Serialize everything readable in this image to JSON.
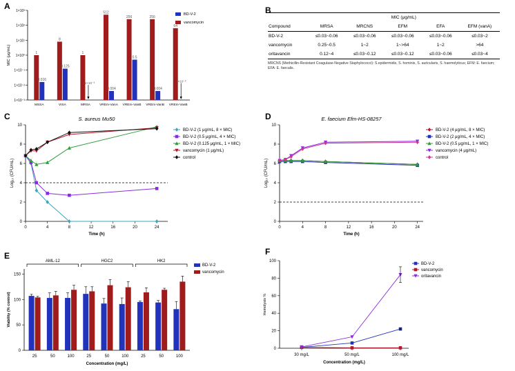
{
  "panels": {
    "a": "A",
    "b": "B",
    "c": "C",
    "d": "D",
    "e": "E",
    "f": "F"
  },
  "chart_data": [
    {
      "id": "A",
      "type": "bar",
      "scale": "log",
      "ylabel": "MIC (μg/mL)",
      "ylim": [
        0.001,
        1000
      ],
      "ticks": [
        "1×10⁻³",
        "1×10⁻²",
        "1×10⁻¹",
        "1×10⁰",
        "1×10¹",
        "1×10²",
        "1×10³"
      ],
      "categories": [
        "MSSA",
        "VISA",
        "MRSA",
        "VREm-VanA",
        "VREm-VanB",
        "VREm-VanB",
        "VREm-VanB"
      ],
      "colors": {
        "BD-V-2": "#2233bb",
        "vancomycin": "#a01c1c"
      },
      "series": [
        {
          "name": "BD-V-2",
          "values": [
            0.016,
            0.125,
            0.0015,
            0.004,
            0.5,
            0.004,
            0.002
          ],
          "labels": [
            "0.016",
            "0.125",
            "1.5×10⁻³",
            "0.004",
            "0.5",
            "0.004",
            "2×10⁻³"
          ],
          "arrow": [
            false,
            false,
            true,
            false,
            false,
            false,
            true
          ]
        },
        {
          "name": "vancomycin",
          "values": [
            1,
            8,
            1,
            512,
            256,
            256,
            64
          ],
          "labels": [
            "1",
            "8",
            "1",
            "512",
            "256",
            "256",
            "64"
          ],
          "arrow": [
            false,
            false,
            false,
            false,
            false,
            false,
            false
          ]
        }
      ]
    },
    {
      "id": "C",
      "type": "line",
      "title": "S. aureus Mu50",
      "xlabel": "Time (h)",
      "ylabel": "Log₁₀ (CFU/mL)",
      "xlim": [
        0,
        26
      ],
      "ylim": [
        0,
        10
      ],
      "xticks": [
        0,
        4,
        8,
        12,
        16,
        20,
        24
      ],
      "yticks": [
        0,
        2,
        4,
        6,
        8,
        10
      ],
      "hline": 4,
      "series": [
        {
          "name": "BD-V-2 (1 μg/mL, 8 × MIC)",
          "color": "#3aa6b8",
          "marker": "diamond",
          "x": [
            0,
            1,
            2,
            4,
            8,
            24
          ],
          "y": [
            6.8,
            6.0,
            3.2,
            2.0,
            0,
            0
          ]
        },
        {
          "name": "BD-V-2 (0.5 μg/mL, 4 × MIC)",
          "color": "#8a2be2",
          "marker": "square",
          "x": [
            0,
            1,
            2,
            4,
            8,
            24
          ],
          "y": [
            6.8,
            6.1,
            4.0,
            2.9,
            2.7,
            3.4
          ]
        },
        {
          "name": "BD-V-2 (0.125 μg/mL, 1 × MIC)",
          "color": "#2e9e3a",
          "marker": "triangle",
          "x": [
            0,
            1,
            2,
            4,
            8,
            24
          ],
          "y": [
            6.8,
            6.3,
            5.9,
            6.1,
            7.6,
            9.8
          ]
        },
        {
          "name": "vancomycin (1 μg/mL)",
          "color": "#b2182b",
          "marker": "tridown",
          "x": [
            0,
            1,
            2,
            4,
            8,
            24
          ],
          "y": [
            6.8,
            7.3,
            7.3,
            8.2,
            9.0,
            9.7
          ]
        },
        {
          "name": "control",
          "color": "#111111",
          "marker": "diamond",
          "x": [
            0,
            1,
            2,
            4,
            8,
            24
          ],
          "y": [
            6.8,
            7.4,
            7.5,
            8.2,
            9.2,
            9.6
          ]
        }
      ]
    },
    {
      "id": "D",
      "type": "line",
      "title": "E. faecium Efm-HS-08257",
      "xlabel": "Time (h)",
      "ylabel": "Log₁₀ (CFU/mL)",
      "xlim": [
        0,
        25
      ],
      "ylim": [
        0,
        10
      ],
      "xticks": [
        0,
        4,
        8,
        12,
        16,
        20,
        24
      ],
      "yticks": [
        0,
        2,
        4,
        6,
        8,
        10
      ],
      "hline": 2,
      "series": [
        {
          "name": "BD-V-2 (4 μg/mL, 8 × MIC)",
          "color": "#b2182b",
          "marker": "diamond",
          "x": [
            0,
            1,
            2,
            4,
            8,
            24
          ],
          "y": [
            6.3,
            6.3,
            6.3,
            6.3,
            6.2,
            5.9
          ]
        },
        {
          "name": "BD-V-2 (2 μg/mL, 4 × MIC)",
          "color": "#2233bb",
          "marker": "square",
          "x": [
            0,
            1,
            2,
            4,
            8,
            24
          ],
          "y": [
            6.2,
            6.2,
            6.2,
            6.2,
            6.1,
            5.8
          ]
        },
        {
          "name": "BD-V-2 (0.5 μg/mL, 1 × MIC)",
          "color": "#2e9e3a",
          "marker": "triangle",
          "x": [
            0,
            1,
            2,
            4,
            8,
            24
          ],
          "y": [
            6.3,
            6.3,
            6.3,
            6.3,
            6.2,
            5.9
          ]
        },
        {
          "name": "vancomycin (4 μg/mL)",
          "color": "#8a2be2",
          "marker": "tridown",
          "x": [
            0,
            1,
            2,
            4,
            8,
            24
          ],
          "y": [
            6.3,
            6.4,
            6.8,
            7.6,
            8.2,
            8.3
          ]
        },
        {
          "name": "control",
          "color": "#cc3399",
          "marker": "diamond",
          "x": [
            0,
            1,
            2,
            4,
            8,
            24
          ],
          "y": [
            6.3,
            6.4,
            6.7,
            7.5,
            8.1,
            8.2
          ]
        }
      ]
    },
    {
      "id": "E",
      "type": "bar",
      "xlabel": "Concentration (mg/L)",
      "ylabel": "Viability (% control)",
      "ylim": [
        0,
        160
      ],
      "yticks": [
        0,
        50,
        100,
        150
      ],
      "groups": [
        "AML-12",
        "HGC2",
        "HK2"
      ],
      "categories": [
        "25",
        "50",
        "100",
        "25",
        "50",
        "100",
        "25",
        "50",
        "100"
      ],
      "series": [
        {
          "name": "BD-V-2",
          "color": "#2233bb",
          "values": [
            107,
            103,
            103,
            111,
            92,
            91,
            95,
            94,
            81
          ],
          "err": [
            3,
            10,
            10,
            14,
            10,
            12,
            2,
            4,
            15
          ]
        },
        {
          "name": "vancomycin",
          "color": "#a01c1c",
          "values": [
            104,
            108,
            119,
            116,
            128,
            124,
            114,
            119,
            135
          ],
          "err": [
            2,
            8,
            9,
            9,
            11,
            11,
            9,
            3,
            11
          ]
        }
      ]
    },
    {
      "id": "F",
      "type": "line",
      "xlabel": "Concentration (mg/L)",
      "ylabel": "Hemolysis %",
      "ylim": [
        0,
        100
      ],
      "yticks": [
        0,
        20,
        40,
        60,
        80,
        100
      ],
      "categories": [
        "30 mg/L",
        "50 mg/L",
        "100 mg/L"
      ],
      "series": [
        {
          "name": "BD-V-2",
          "color": "#2233bb",
          "marker": "square",
          "values": [
            1,
            6,
            22
          ],
          "err": [
            0,
            0,
            1
          ]
        },
        {
          "name": "vancomycin",
          "color": "#b2182b",
          "marker": "square",
          "values": [
            1,
            0.5,
            0.5
          ],
          "err": [
            0,
            0,
            0
          ]
        },
        {
          "name": "oritavancin",
          "color": "#8a2be2",
          "marker": "tridown",
          "values": [
            1.5,
            13,
            84
          ],
          "err": [
            0,
            0,
            9
          ]
        }
      ]
    }
  ],
  "table": {
    "mic_header": "MIC (μg/mL)",
    "columns": [
      "Compound",
      "MRSA",
      "MRCNS",
      "EFM",
      "EFA",
      "EFM (vanA)"
    ],
    "rows": [
      [
        "BD-V-2",
        "≤0.03~0.06",
        "≤0.03~0.06",
        "≤0.03~0.06",
        "≤0.03~0.06",
        "≤0.03~2"
      ],
      [
        "vancomycin",
        "0.25~0.5",
        "1~2",
        "1~>64",
        "1~2",
        ">64"
      ],
      [
        "oritavancin",
        "0.12~4",
        "≤0.03~0.12",
        "≤0.03~0.12",
        "≤0.03~0.06",
        "≤0.03~4"
      ]
    ],
    "footnote": "MRCNS (Methicillin-Resistant Coagulase-Negative Staphylococci): S.epidermidis, S. hominis, S. auricularis, S. haemolyticus; EFM: E. faecium; EFA: E. faecalis."
  }
}
